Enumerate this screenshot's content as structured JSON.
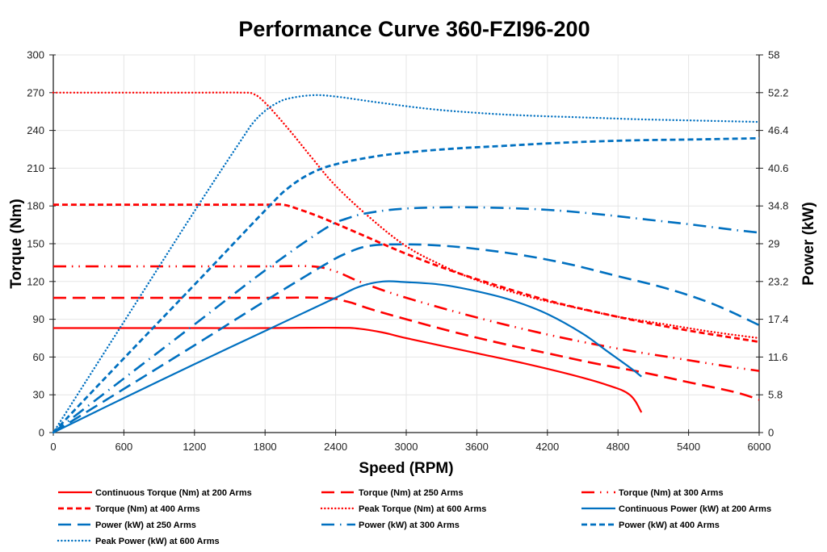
{
  "chart_data": {
    "type": "line",
    "title": "Performance Curve 360-FZI96-200",
    "xlabel": "Speed (RPM)",
    "ylabel": "Torque (Nm)",
    "y2label": "Power (kW)",
    "xlim": [
      0,
      6000
    ],
    "ylim": [
      0,
      300
    ],
    "y2lim": [
      0,
      58
    ],
    "xticks": [
      "0",
      "600",
      "1200",
      "1800",
      "2400",
      "3000",
      "3600",
      "4200",
      "4800",
      "5400",
      "6000"
    ],
    "yticks": [
      "0",
      "30",
      "60",
      "90",
      "120",
      "150",
      "180",
      "210",
      "240",
      "270",
      "300"
    ],
    "y2ticks": [
      "0",
      "5.8",
      "11.6",
      "17.4",
      "23.2",
      "29",
      "34.8",
      "40.6",
      "46.4",
      "52.2",
      "58"
    ],
    "grid": true,
    "legend_position": "bottom",
    "colors": {
      "torque": "#ff0000",
      "power": "#0070c0"
    },
    "series": [
      {
        "name": "Continuous Torque (Nm) at 200 Arms",
        "axis": "left",
        "color": "#ff0000",
        "style": "solid",
        "x": [
          0,
          600,
          1200,
          1800,
          2400,
          2600,
          2800,
          3000,
          3300,
          3600,
          4000,
          4400,
          4700,
          4900,
          5000
        ],
        "y": [
          83,
          83,
          83,
          83,
          83.3,
          82.5,
          79.5,
          75,
          69,
          63,
          55,
          46,
          38,
          30,
          16
        ]
      },
      {
        "name": "Torque (Nm) at 250 Arms",
        "axis": "left",
        "color": "#ff0000",
        "style": "longdash",
        "x": [
          0,
          600,
          1200,
          1800,
          2300,
          2500,
          2700,
          3000,
          3400,
          3800,
          4200,
          4600,
          5000,
          5400,
          5800,
          6000
        ],
        "y": [
          107,
          107,
          107,
          107,
          107,
          104,
          98,
          90,
          80,
          71,
          63,
          55,
          48,
          40,
          32,
          26
        ]
      },
      {
        "name": "Torque (Nm) at 300 Arms",
        "axis": "left",
        "color": "#ff0000",
        "style": "dashdotdot",
        "x": [
          0,
          600,
          1200,
          1800,
          2200,
          2400,
          2600,
          2900,
          3300,
          3700,
          4100,
          4500,
          4900,
          5300,
          5700,
          6000
        ],
        "y": [
          132,
          132,
          132,
          132,
          132,
          128,
          120,
          110,
          99,
          89,
          80,
          72,
          65,
          59,
          53,
          49
        ]
      },
      {
        "name": "Torque (Nm) at 400 Arms",
        "axis": "left",
        "color": "#ff0000",
        "style": "shortdash",
        "x": [
          0,
          600,
          1200,
          1800,
          1950,
          2100,
          2300,
          2600,
          3000,
          3400,
          3800,
          4200,
          4600,
          5000,
          5400,
          5800,
          6000
        ],
        "y": [
          181,
          181,
          181,
          181,
          181,
          177,
          170,
          158,
          142,
          128,
          116,
          105,
          96,
          88,
          81,
          75,
          72
        ]
      },
      {
        "name": "Peak Torque (Nm) at 600 Arms",
        "axis": "left",
        "color": "#ff0000",
        "style": "dotted",
        "x": [
          0,
          600,
          1200,
          1600,
          1700,
          1800,
          2000,
          2200,
          2400,
          2700,
          3000,
          3300,
          3600,
          4000,
          4400,
          4800,
          5200,
          5600,
          6000
        ],
        "y": [
          270,
          270,
          270,
          270,
          269,
          262,
          241,
          218,
          196,
          170,
          148,
          133,
          121,
          109,
          100,
          92,
          86,
          80,
          75
        ]
      },
      {
        "name": "Continuous Power (kW) at 200 Arms",
        "axis": "right",
        "color": "#0070c0",
        "style": "solid",
        "x": [
          0,
          600,
          1200,
          1800,
          2400,
          2600,
          2800,
          3000,
          3300,
          3600,
          3900,
          4200,
          4500,
          4700,
          4900,
          5000
        ],
        "y": [
          0,
          5.3,
          10.5,
          15.6,
          20.7,
          22.4,
          23.2,
          23.1,
          22.7,
          21.7,
          20.3,
          18.2,
          15.2,
          12.6,
          10.0,
          8.6
        ]
      },
      {
        "name": "Power (kW) at 250 Arms",
        "axis": "right",
        "color": "#0070c0",
        "style": "longdash",
        "x": [
          0,
          600,
          1200,
          1800,
          2300,
          2500,
          2700,
          3000,
          3300,
          3600,
          4000,
          4400,
          4800,
          5200,
          5600,
          6000
        ],
        "y": [
          0,
          6.7,
          13.4,
          20.2,
          25.7,
          27.6,
          28.7,
          28.9,
          28.7,
          28.2,
          27.2,
          25.8,
          24.0,
          22.2,
          19.8,
          16.5
        ]
      },
      {
        "name": "Power (kW) at 300 Arms",
        "axis": "right",
        "color": "#0070c0",
        "style": "dashdot",
        "x": [
          0,
          600,
          1200,
          1800,
          2300,
          2500,
          2700,
          3000,
          3400,
          3800,
          4200,
          4600,
          5000,
          5400,
          5800,
          6000
        ],
        "y": [
          0,
          8.3,
          16.6,
          24.9,
          31.2,
          32.9,
          33.8,
          34.4,
          34.6,
          34.5,
          34.2,
          33.6,
          32.8,
          32.0,
          31.1,
          30.7
        ]
      },
      {
        "name": "Power (kW) at 400 Arms",
        "axis": "right",
        "color": "#0070c0",
        "style": "shortdash",
        "x": [
          0,
          600,
          1200,
          1800,
          2000,
          2200,
          2400,
          2700,
          3000,
          3400,
          3800,
          4200,
          4600,
          5000,
          5400,
          6000
        ],
        "y": [
          0,
          11.4,
          22.7,
          34.1,
          37.6,
          39.9,
          41.2,
          42.3,
          43.0,
          43.6,
          44.0,
          44.4,
          44.7,
          44.9,
          45.0,
          45.2
        ]
      },
      {
        "name": "Peak Power (kW) at 600 Arms",
        "axis": "right",
        "color": "#0070c0",
        "style": "dotted",
        "x": [
          0,
          600,
          1200,
          1600,
          1700,
          1800,
          1900,
          2000,
          2200,
          2400,
          2800,
          3200,
          3600,
          4000,
          4500,
          5000,
          5500,
          6000
        ],
        "y": [
          0,
          17.0,
          34.0,
          45.0,
          47.6,
          49.4,
          50.6,
          51.3,
          51.8,
          51.6,
          50.6,
          49.7,
          49.1,
          48.7,
          48.4,
          48.1,
          47.9,
          47.7
        ]
      }
    ]
  }
}
